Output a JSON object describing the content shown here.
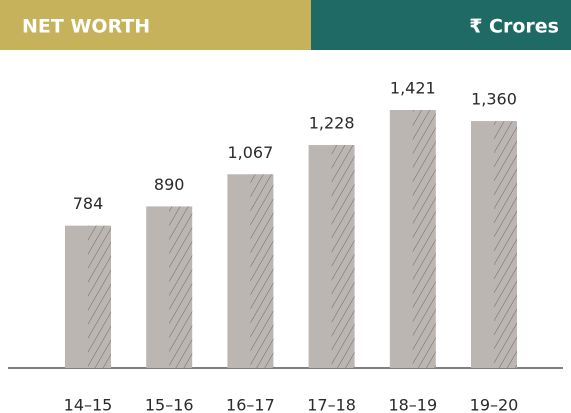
{
  "chart_data": {
    "type": "bar",
    "title": "NET WORTH",
    "unit": "₹ Crores",
    "categories": [
      "14–15",
      "15–16",
      "16–17",
      "17–18",
      "18–19",
      "19–20"
    ],
    "values": [
      784,
      890,
      1067,
      1228,
      1421,
      1360
    ],
    "value_labels": [
      "784",
      "890",
      "1,067",
      "1,228",
      "1,421",
      "1,360"
    ],
    "color": "#bcb6b3"
  }
}
